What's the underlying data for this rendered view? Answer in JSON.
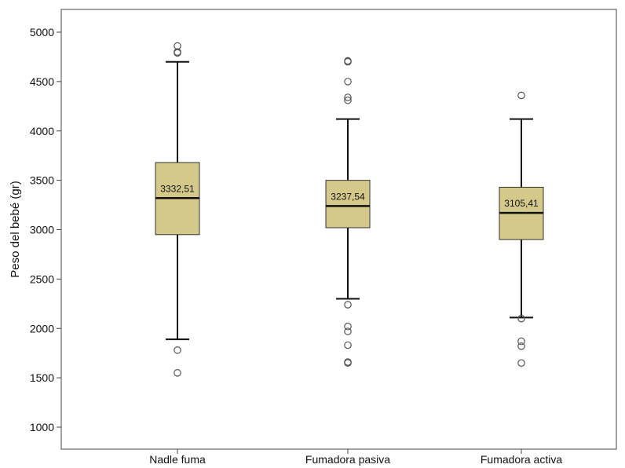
{
  "chart_data": {
    "type": "box",
    "ylabel": "Peso del bebé (gr)",
    "ylim": [
      750,
      5250
    ],
    "yticks": [
      1000,
      1500,
      2000,
      2500,
      3000,
      3500,
      4000,
      4500,
      5000
    ],
    "ytick_labels": [
      "1000",
      "1500",
      "2000",
      "2500",
      "3000",
      "3500",
      "4000",
      "4500",
      "5000"
    ],
    "box_color": "#d4c98a",
    "categories": [
      "Nadle fuma",
      "Fumadora pasiva",
      "Fumadora activa"
    ],
    "boxes": [
      {
        "category": "Nadle fuma",
        "whisker_low": 1890,
        "q1": 2950,
        "median": 3320,
        "q3": 3680,
        "whisker_high": 4700,
        "mean_label": "3332,51",
        "outliers": [
          1550,
          1780,
          4790,
          4800,
          4860
        ]
      },
      {
        "category": "Fumadora pasiva",
        "whisker_low": 2300,
        "q1": 3020,
        "median": 3240,
        "q3": 3500,
        "whisker_high": 4120,
        "mean_label": "3237,54",
        "outliers": [
          1650,
          1660,
          1830,
          1970,
          2020,
          2240,
          4310,
          4340,
          4500,
          4700,
          4710
        ]
      },
      {
        "category": "Fumadora activa",
        "whisker_low": 2110,
        "q1": 2900,
        "median": 3170,
        "q3": 3430,
        "whisker_high": 4120,
        "mean_label": "3105,41",
        "outliers": [
          1650,
          1820,
          1870,
          2100,
          4360
        ]
      }
    ]
  }
}
